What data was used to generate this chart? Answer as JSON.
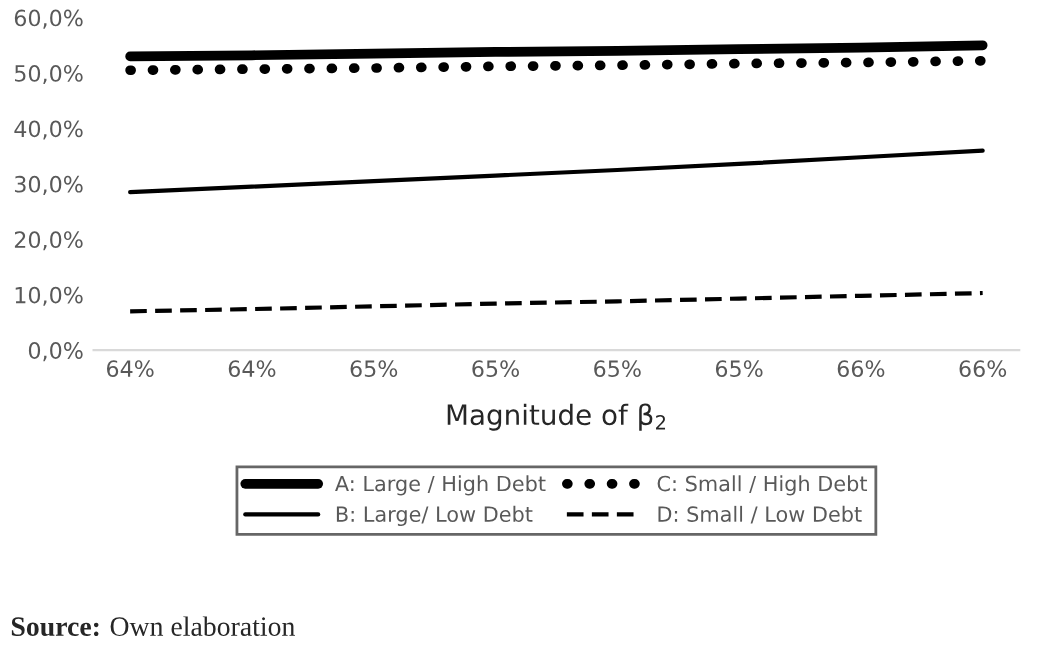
{
  "chart_data": {
    "type": "line",
    "categories": [
      "64%",
      "64%",
      "65%",
      "65%",
      "65%",
      "65%",
      "66%",
      "66%"
    ],
    "xlabel": "Magnitude of β$_{2}$",
    "ylim": [
      0,
      60
    ],
    "yticks": [
      {
        "value": 0,
        "label": "0,0%"
      },
      {
        "value": 10,
        "label": "10,0%"
      },
      {
        "value": 20,
        "label": "20,0%"
      },
      {
        "value": 30,
        "label": "30,0%"
      },
      {
        "value": 40,
        "label": "40,0%"
      },
      {
        "value": 50,
        "label": "50,0%"
      },
      {
        "value": 60,
        "label": "60,0%"
      }
    ],
    "series": [
      {
        "name": "A: Large / High Debt",
        "color": "#000000",
        "line_style": "solid",
        "values": [
          53.0,
          53.2,
          53.5,
          53.8,
          54.0,
          54.3,
          54.6,
          55.0
        ]
      },
      {
        "name": "B: Large/ Low Debt",
        "color": "#000000",
        "line_style": "solid",
        "values": [
          28.5,
          29.5,
          30.5,
          31.5,
          32.5,
          33.6,
          34.8,
          36.0
        ]
      },
      {
        "name": "C: Small / High Debt",
        "color": "#000000",
        "line_style": "dotted",
        "values": [
          50.5,
          50.7,
          50.9,
          51.2,
          51.4,
          51.7,
          51.9,
          52.2
        ]
      },
      {
        "name": "D: Small / Low Debt",
        "color": "#000000",
        "line_style": "dashed",
        "values": [
          7.0,
          7.4,
          7.9,
          8.4,
          8.8,
          9.3,
          9.8,
          10.3
        ]
      }
    ],
    "grid": false,
    "legend": "bottom",
    "annotations": [
      "Source: Own elaboration"
    ]
  }
}
